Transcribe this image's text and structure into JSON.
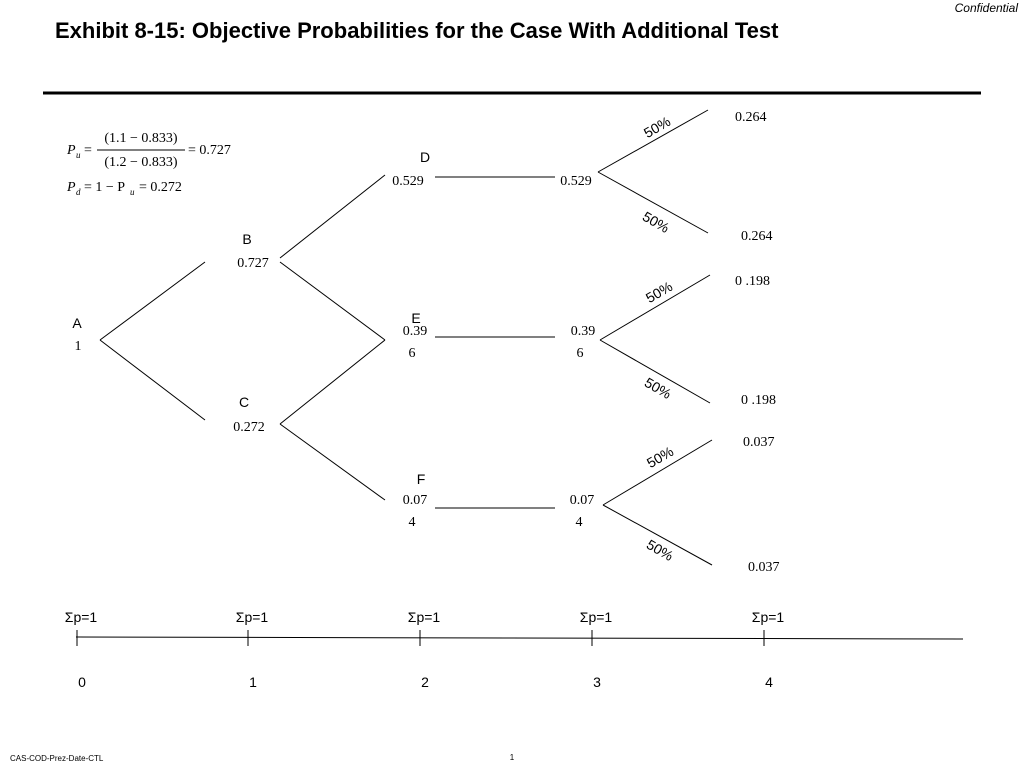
{
  "header": {
    "confidential": "Confidential",
    "title": "Exhibit 8-15: Objective Probabilities for the Case With Additional Test"
  },
  "formulas": {
    "pu_lhs": "P",
    "pu_sub": "u",
    "pu_eq": "=",
    "pu_num": "(1.1 − 0.833)",
    "pu_den": "(1.2 − 0.833)",
    "pu_result": "= 0.727",
    "pd_lhs": "P",
    "pd_sub": "d",
    "pd_eq": "= 1 − P",
    "pd_eq_sub": "u",
    "pd_result": "= 0.272"
  },
  "nodes": [
    {
      "label": "A",
      "value": [
        "1"
      ]
    },
    {
      "label": "B",
      "value": [
        "0.727"
      ]
    },
    {
      "label": "C",
      "value": [
        "0.272"
      ]
    },
    {
      "label": "D",
      "value": [
        "0.529"
      ],
      "next_value": [
        "0.529"
      ]
    },
    {
      "label": "E",
      "value": [
        "0.39",
        "6"
      ],
      "next_value": [
        "0.39",
        "6"
      ]
    },
    {
      "label": "F",
      "value": [
        "0.07",
        "4"
      ],
      "next_value": [
        "0.07",
        "4"
      ]
    }
  ],
  "branches": [
    "50%",
    "50%",
    "50%",
    "50%",
    "50%",
    "50%"
  ],
  "leaves": [
    "0.264",
    "0.264",
    "0 .198",
    "0 .198",
    "0.037",
    "0.037"
  ],
  "timeline": {
    "sums": [
      "Σp=1",
      "Σp=1",
      "Σp=1",
      "Σp=1",
      "Σp=1"
    ],
    "ticks": [
      "0",
      "1",
      "2",
      "3",
      "4"
    ]
  },
  "footer": {
    "left": "CAS-COD-Prez-Date-CTL",
    "page": "1"
  }
}
